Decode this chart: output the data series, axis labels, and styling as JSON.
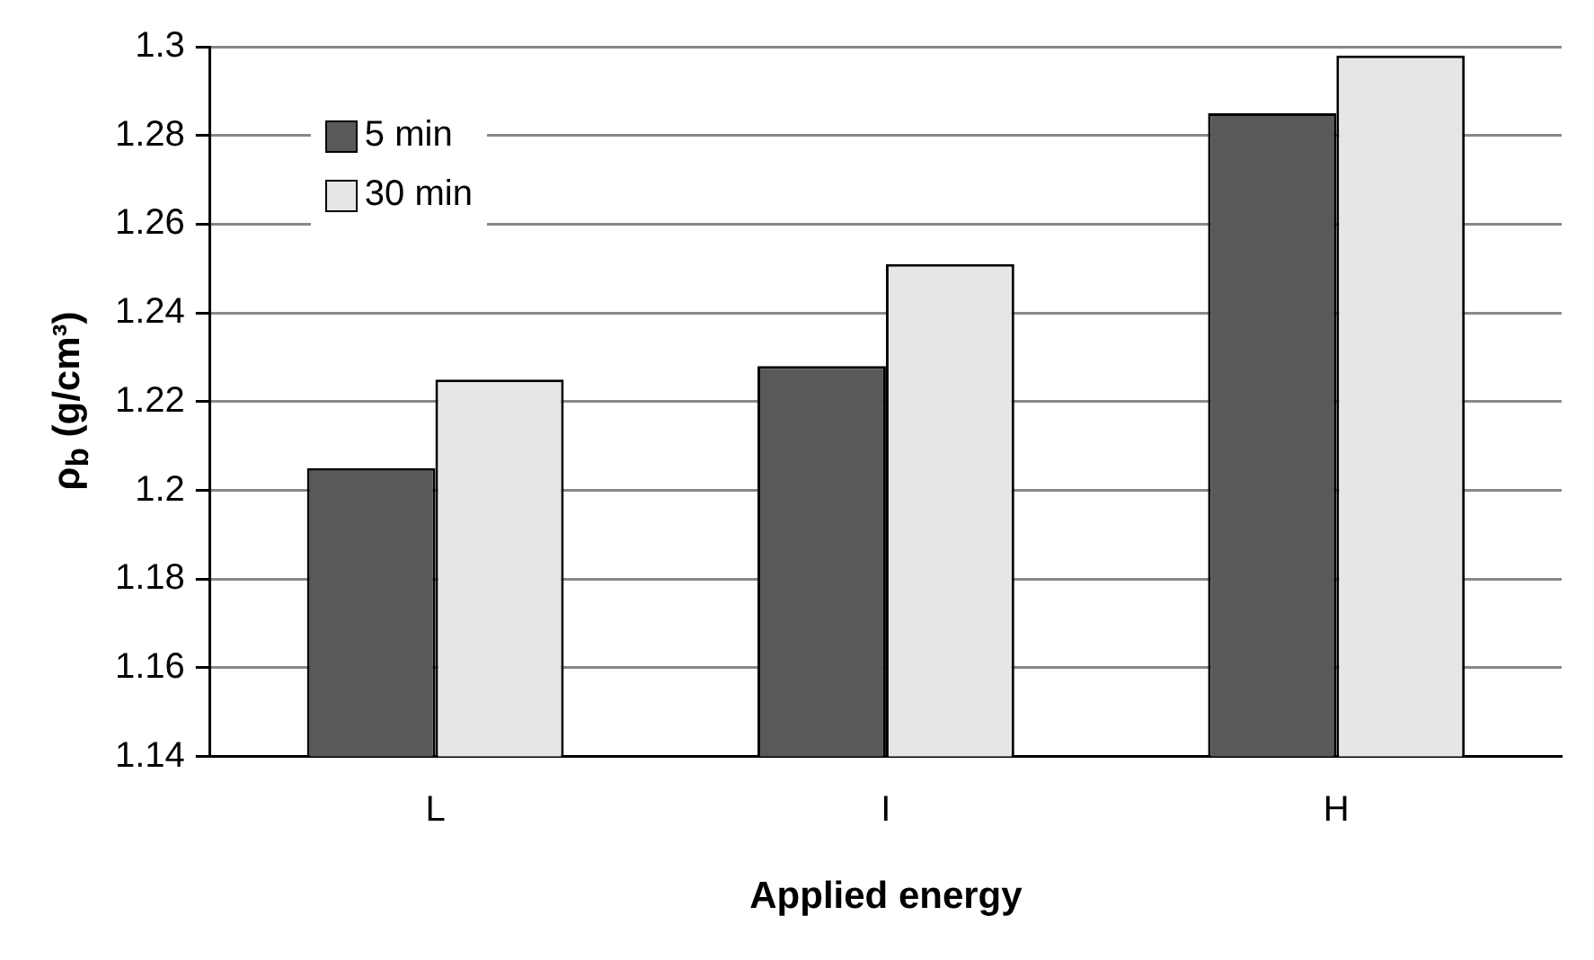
{
  "chart_data": {
    "type": "bar",
    "xlabel": "Applied energy",
    "ylabel": "ρ$_{b}$ (g/cm³)",
    "categories": [
      "L",
      "I",
      "H"
    ],
    "series": [
      {
        "name": "5 min",
        "color": "#595959",
        "values": [
          1.205,
          1.228,
          1.285
        ]
      },
      {
        "name": "30 min",
        "color": "#e6e6e6",
        "values": [
          1.225,
          1.251,
          1.298
        ]
      }
    ],
    "ylim": [
      1.14,
      1.3
    ],
    "yticks": [
      1.14,
      1.16,
      1.18,
      1.2,
      1.22,
      1.24,
      1.26,
      1.28,
      1.3
    ],
    "grid": "y",
    "legend": "top left"
  }
}
